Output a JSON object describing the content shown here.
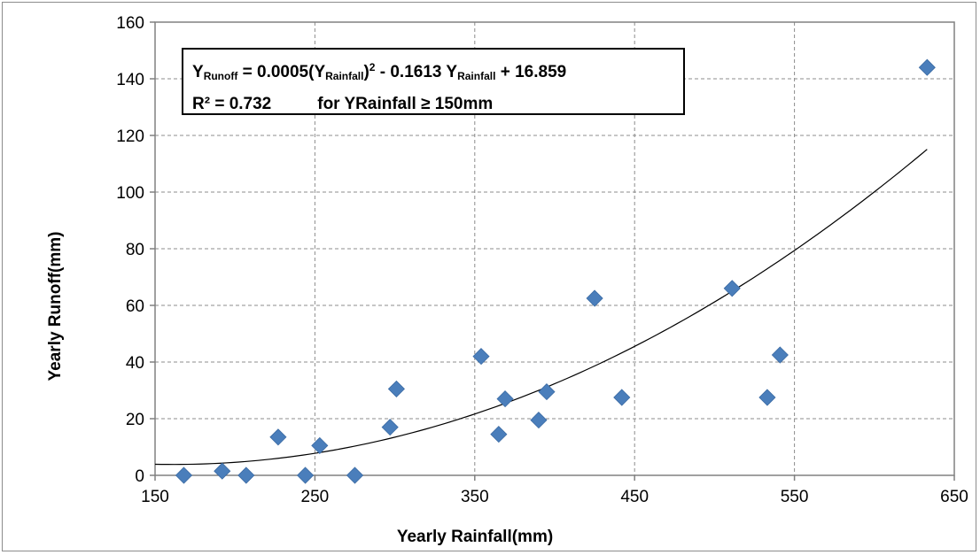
{
  "chart_data": {
    "type": "scatter",
    "xlabel": "Yearly Rainfall(mm)",
    "ylabel": "Yearly Runoff(mm)",
    "xlim": [
      150,
      650
    ],
    "ylim": [
      0,
      160
    ],
    "x_ticks": [
      "150",
      "250",
      "350",
      "450",
      "550",
      "650"
    ],
    "y_ticks": [
      "0",
      "20",
      "40",
      "60",
      "80",
      "100",
      "120",
      "140",
      "160"
    ],
    "grid": "dashed major gridlines",
    "legend": "none",
    "series": [
      {
        "marker": "diamond",
        "color": "#4a7ebb",
        "points": [
          {
            "x": 168,
            "y": 0
          },
          {
            "x": 192,
            "y": 1.5
          },
          {
            "x": 207,
            "y": 0
          },
          {
            "x": 227,
            "y": 13.5
          },
          {
            "x": 244,
            "y": 0
          },
          {
            "x": 253,
            "y": 10.5
          },
          {
            "x": 275,
            "y": 0
          },
          {
            "x": 297,
            "y": 17
          },
          {
            "x": 301,
            "y": 30.5
          },
          {
            "x": 354,
            "y": 42
          },
          {
            "x": 365,
            "y": 14.5
          },
          {
            "x": 369,
            "y": 27
          },
          {
            "x": 390,
            "y": 19.5
          },
          {
            "x": 395,
            "y": 29.5
          },
          {
            "x": 425,
            "y": 62.5
          },
          {
            "x": 442,
            "y": 27.5
          },
          {
            "x": 511,
            "y": 66
          },
          {
            "x": 533,
            "y": 27.5
          },
          {
            "x": 541,
            "y": 42.5
          },
          {
            "x": 633,
            "y": 144
          }
        ]
      }
    ],
    "trendline": {
      "type": "polynomial-2",
      "a": 0.0005,
      "b": -0.1613,
      "c": 16.859,
      "x_range": [
        150,
        633
      ],
      "color": "#000000"
    },
    "annotation": {
      "line1": {
        "y1": "Y",
        "sub1": "Runoff",
        "mid1": " = 0.0005(Y",
        "sub2": "Rainfall",
        "mid2": ")",
        "sup": "2",
        "mid3": " - 0.1613 Y",
        "sub3": "Rainfall",
        "end": " + 16.859"
      },
      "line2": {
        "r2": "R² = 0.732",
        "cond": "for YRainfall ≥ 150mm"
      }
    }
  }
}
